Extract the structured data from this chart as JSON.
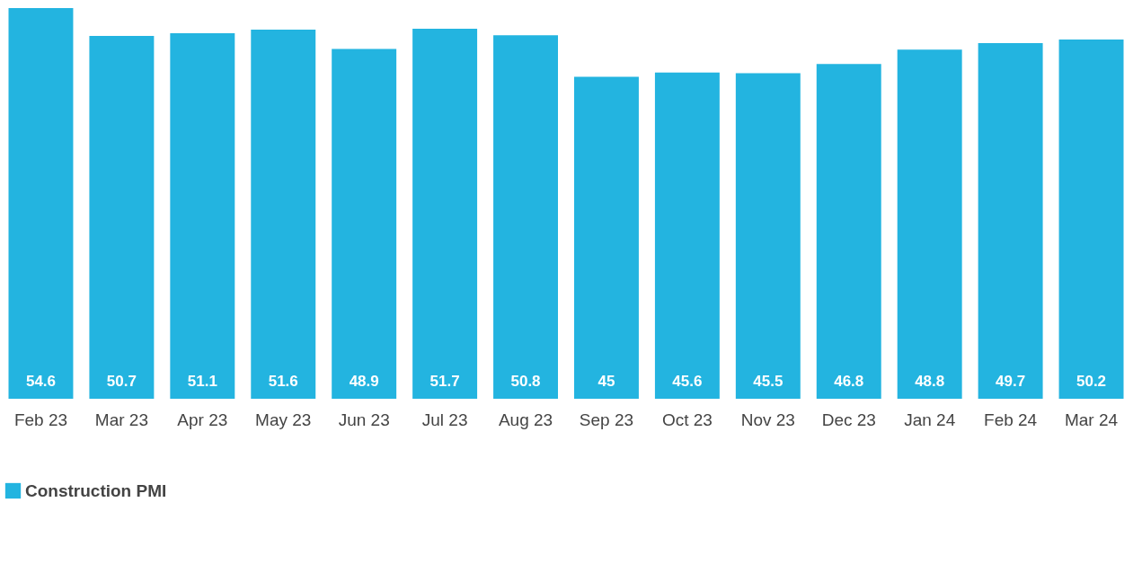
{
  "chart_data": {
    "type": "bar",
    "categories": [
      "Feb 23",
      "Mar 23",
      "Apr 23",
      "May 23",
      "Jun 23",
      "Jul 23",
      "Aug 23",
      "Sep 23",
      "Oct 23",
      "Nov 23",
      "Dec 23",
      "Jan 24",
      "Feb 24",
      "Mar 24"
    ],
    "series": [
      {
        "name": "Construction PMI",
        "color": "#23b4e0",
        "values": [
          54.6,
          50.7,
          51.1,
          51.6,
          48.9,
          51.7,
          50.8,
          45,
          45.6,
          45.5,
          46.8,
          48.8,
          49.7,
          50.2
        ]
      }
    ],
    "data_labels": true,
    "legend": "bottom",
    "grid": false
  }
}
